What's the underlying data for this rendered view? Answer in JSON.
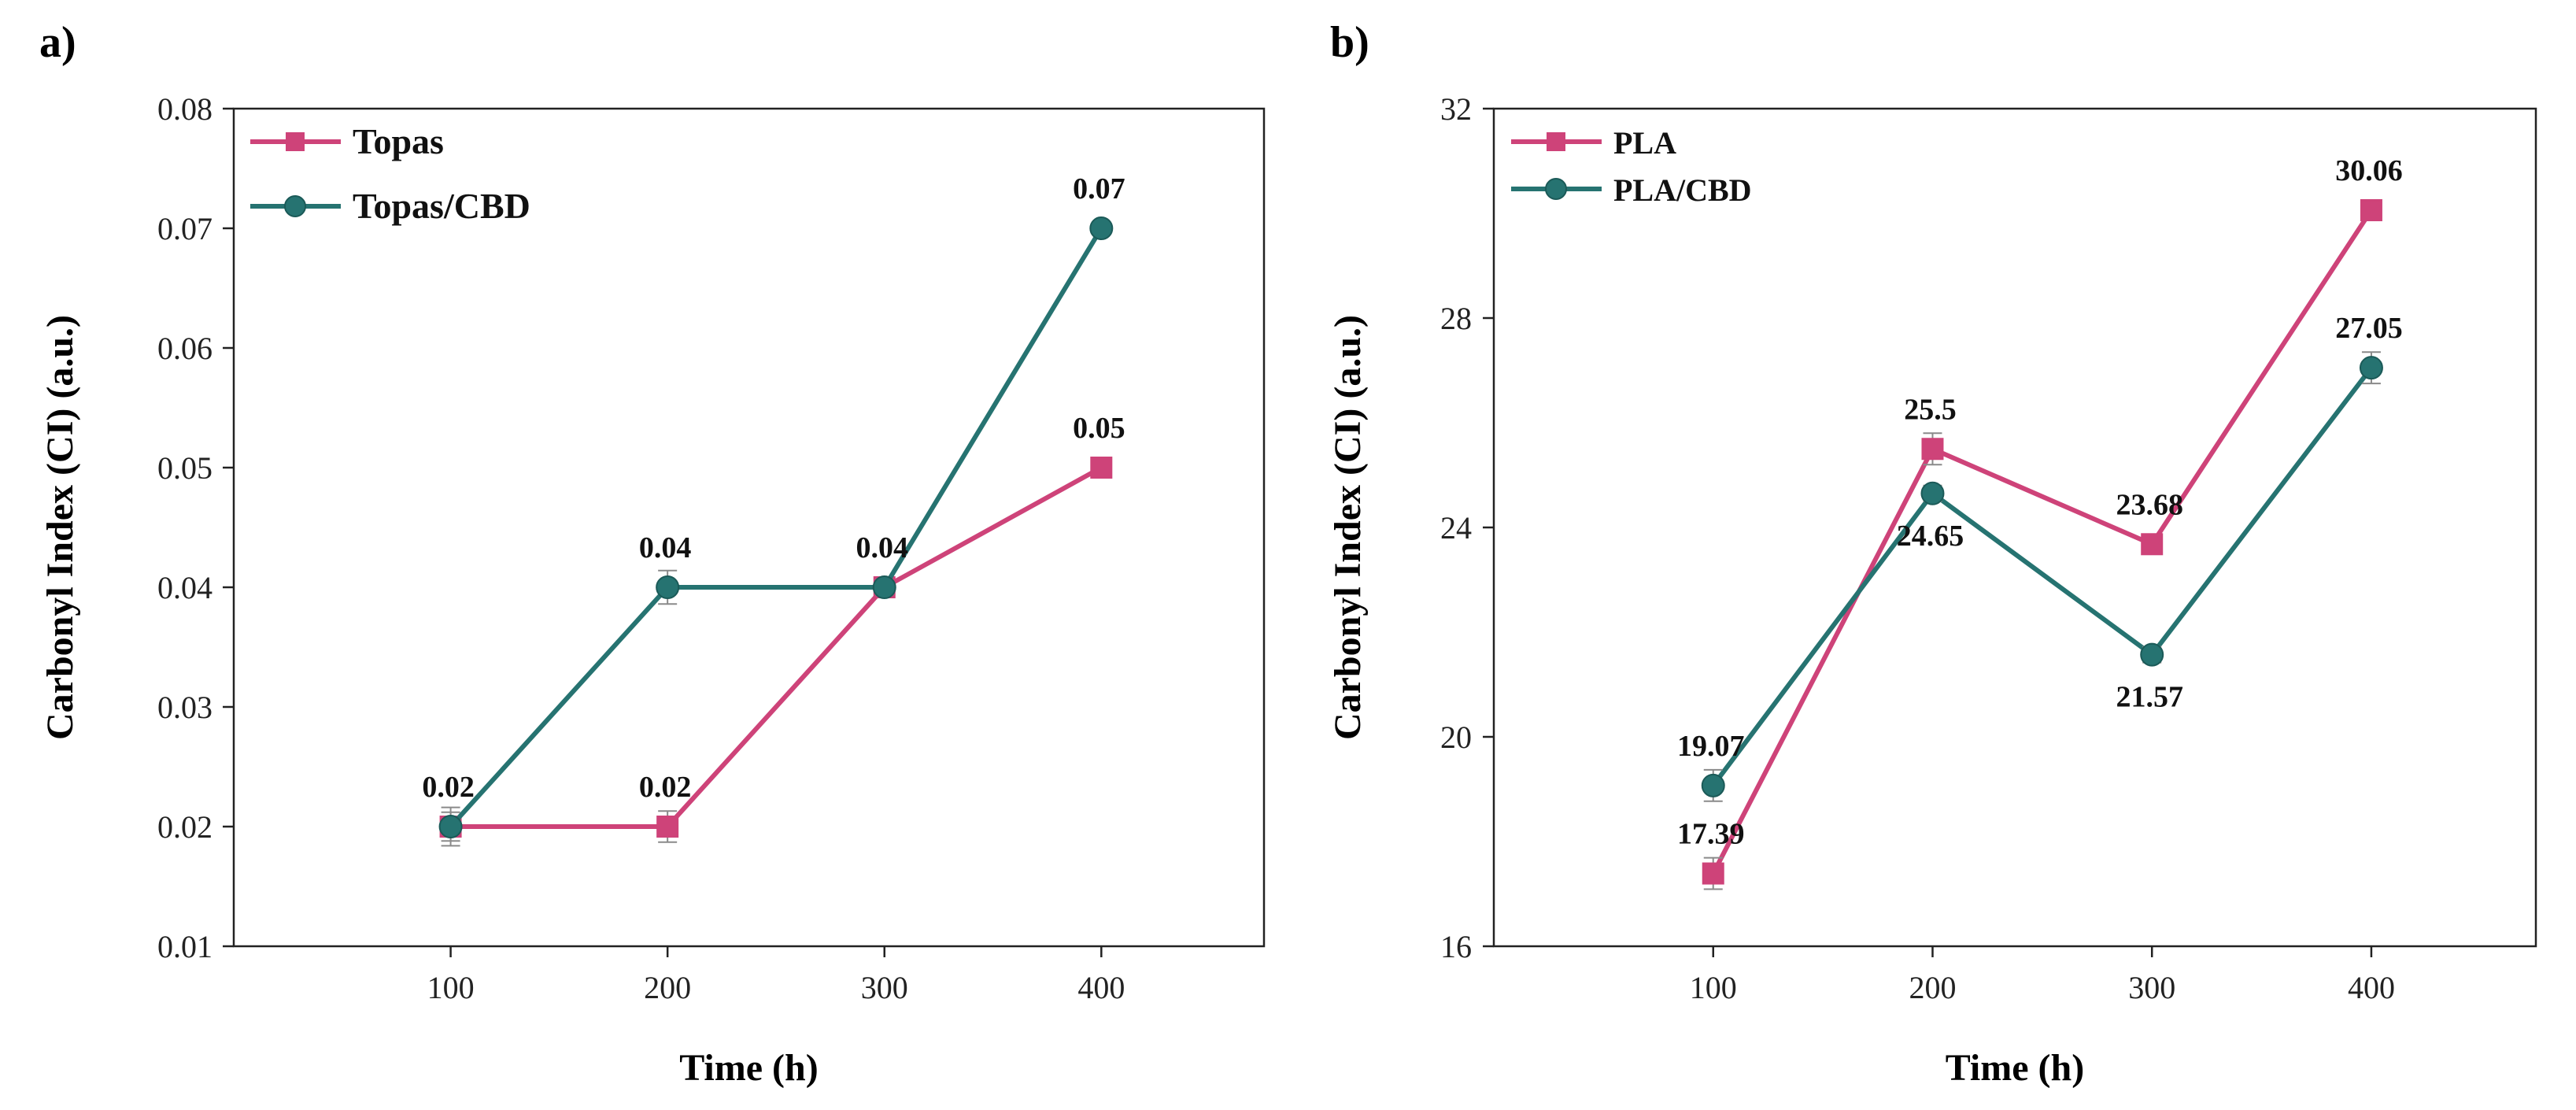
{
  "colors": {
    "series1": "#CE4379",
    "series2": "#267371",
    "axis": "#222222",
    "errorbar": "#8a8a8a"
  },
  "chart_data": [
    {
      "panel_label": "a)",
      "type": "line",
      "title": "",
      "xlabel": "Time (h)",
      "ylabel": "Carbonyl Index (CI) (a.u.)",
      "x": [
        100,
        200,
        300,
        400
      ],
      "xlim": [
        0,
        475
      ],
      "ylim": [
        0.01,
        0.08
      ],
      "xticks": [
        "100",
        "200",
        "300",
        "400"
      ],
      "yticks": [
        "0.01",
        "0.02",
        "0.03",
        "0.04",
        "0.05",
        "0.06",
        "0.07",
        "0.08"
      ],
      "legend_position": "top-left",
      "series": [
        {
          "name": "Topas",
          "marker": "square",
          "values": [
            0.02,
            0.02,
            0.04,
            0.05
          ],
          "errors": [
            0.0012,
            0.0013,
            0.0006,
            0.0004
          ],
          "labels": [
            "",
            "0.02",
            "",
            "0.05"
          ],
          "label_pos": [
            "",
            "above",
            "",
            "above"
          ]
        },
        {
          "name": "Topas/CBD",
          "marker": "circle",
          "values": [
            0.02,
            0.04,
            0.04,
            0.07
          ],
          "errors": [
            0.0016,
            0.0014,
            0.0006,
            0.0004
          ],
          "labels": [
            "0.02",
            "0.04",
            "0.04",
            "0.07"
          ],
          "label_pos": [
            "above",
            "above",
            "above",
            "above"
          ]
        }
      ]
    },
    {
      "panel_label": "b)",
      "type": "line",
      "title": "",
      "xlabel": "Time (h)",
      "ylabel": "Carbonyl Index (CI) (a.u.)",
      "x": [
        100,
        200,
        300,
        400
      ],
      "xlim": [
        0,
        475
      ],
      "ylim": [
        16,
        32
      ],
      "xticks": [
        "100",
        "200",
        "300",
        "400"
      ],
      "yticks": [
        "16",
        "20",
        "24",
        "28",
        "32"
      ],
      "legend_position": "top-left",
      "series": [
        {
          "name": "PLA",
          "marker": "square",
          "values": [
            17.39,
            25.5,
            23.68,
            30.06
          ],
          "errors": [
            0.3,
            0.3,
            0.15,
            0.15
          ],
          "labels": [
            "17.39",
            "25.5",
            "23.68",
            "30.06"
          ],
          "label_pos": [
            "above",
            "above",
            "above",
            "above"
          ]
        },
        {
          "name": "PLA/CBD",
          "marker": "circle",
          "values": [
            19.07,
            24.65,
            21.57,
            27.05
          ],
          "errors": [
            0.3,
            0.15,
            0.15,
            0.3
          ],
          "labels": [
            "19.07",
            "24.65",
            "21.57",
            "27.05"
          ],
          "label_pos": [
            "above",
            "below",
            "below",
            "above"
          ]
        }
      ]
    }
  ]
}
